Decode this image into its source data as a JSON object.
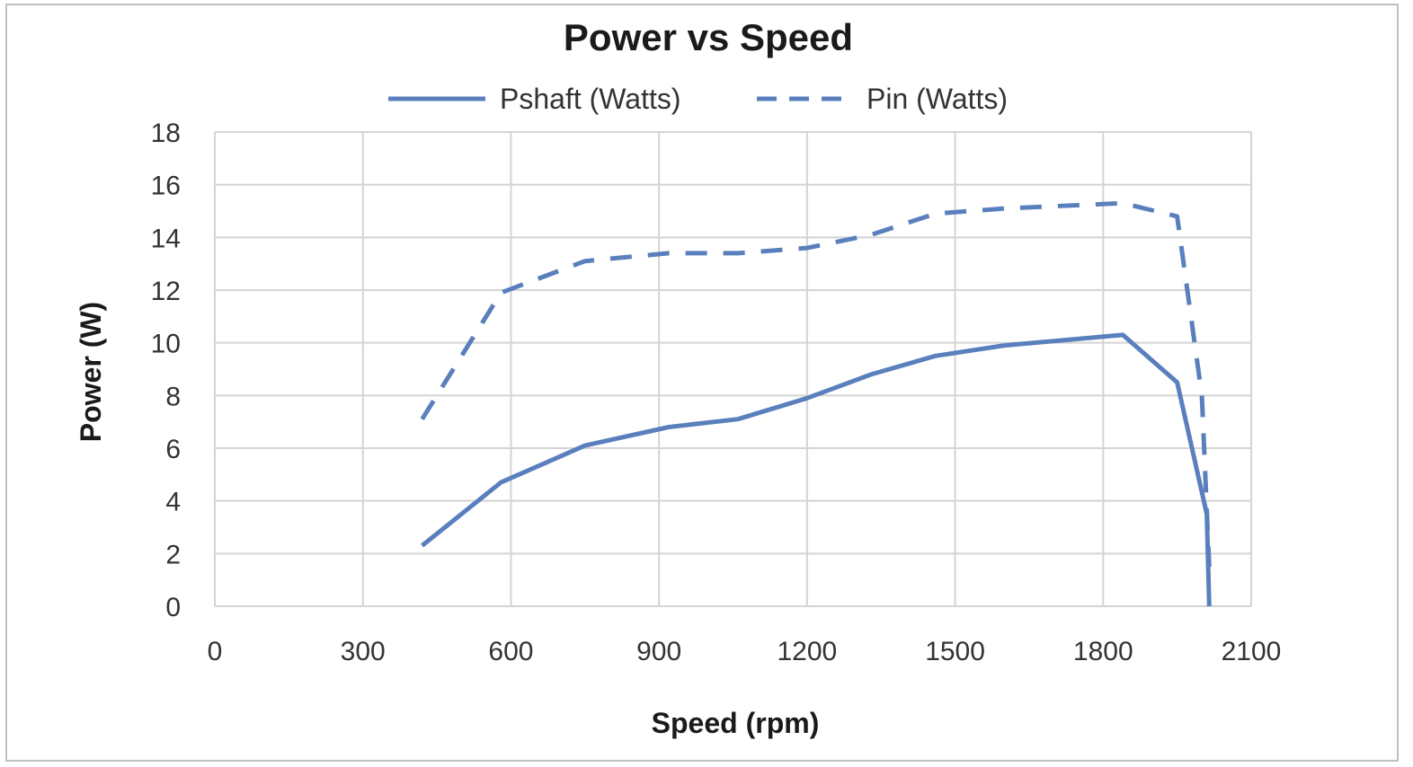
{
  "chart_data": {
    "type": "line",
    "title": "Power vs Speed",
    "xlabel": "Speed (rpm)",
    "ylabel": "Power (W)",
    "xlim": [
      0,
      2100
    ],
    "ylim": [
      0,
      18
    ],
    "xticks": [
      0,
      300,
      600,
      900,
      1200,
      1500,
      1800,
      2100
    ],
    "yticks": [
      0,
      2,
      4,
      6,
      8,
      10,
      12,
      14,
      16,
      18
    ],
    "grid": true,
    "legend_position": "top",
    "series": [
      {
        "name": "Pshaft (Watts)",
        "style": "solid",
        "color": "#5a7fbd",
        "points": [
          [
            420,
            2.3
          ],
          [
            580,
            4.7
          ],
          [
            750,
            6.1
          ],
          [
            920,
            6.8
          ],
          [
            1060,
            7.1
          ],
          [
            1200,
            7.9
          ],
          [
            1330,
            8.8
          ],
          [
            1460,
            9.5
          ],
          [
            1600,
            9.9
          ],
          [
            1840,
            10.3
          ],
          [
            1950,
            8.5
          ],
          [
            2010,
            3.5
          ],
          [
            2015,
            0.0
          ]
        ]
      },
      {
        "name": "Pin (Watts)",
        "style": "dashed",
        "color": "#5a7fbd",
        "points": [
          [
            420,
            7.1
          ],
          [
            580,
            11.9
          ],
          [
            750,
            13.1
          ],
          [
            920,
            13.4
          ],
          [
            1060,
            13.4
          ],
          [
            1200,
            13.6
          ],
          [
            1330,
            14.1
          ],
          [
            1460,
            14.9
          ],
          [
            1600,
            15.1
          ],
          [
            1840,
            15.3
          ],
          [
            1950,
            14.8
          ],
          [
            2000,
            8.0
          ],
          [
            2015,
            1.5
          ]
        ]
      }
    ]
  }
}
